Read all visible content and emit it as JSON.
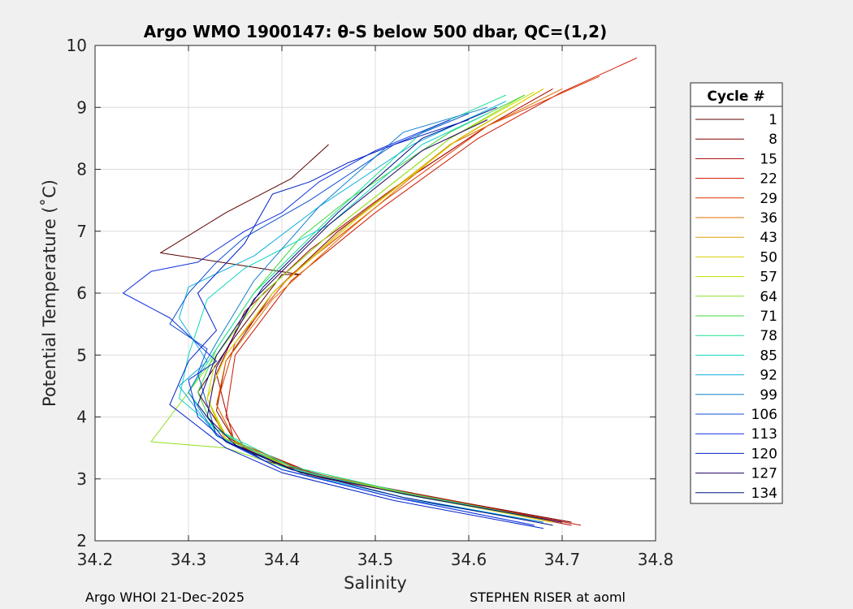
{
  "chart_data": {
    "type": "line",
    "title": "Argo WMO 1900147: θ-S below 500 dbar,  QC=(1,2)",
    "xlabel": "Salinity",
    "ylabel": "Potential Temperature (˚C)",
    "xlim": [
      34.2,
      34.8
    ],
    "ylim": [
      2,
      10
    ],
    "x_ticks": [
      "34.2",
      "34.3",
      "34.4",
      "34.5",
      "34.6",
      "34.7",
      "34.8"
    ],
    "y_ticks": [
      "2",
      "3",
      "4",
      "5",
      "6",
      "7",
      "8",
      "9",
      "10"
    ],
    "grid": true,
    "legend_position": "outside-right",
    "legend": {
      "title": "Cycle #",
      "entries": [
        "1",
        "8",
        "15",
        "22",
        "29",
        "36",
        "43",
        "50",
        "57",
        "64",
        "71",
        "78",
        "85",
        "92",
        "99",
        "106",
        "113",
        "120",
        "127",
        "134"
      ],
      "colors": [
        "#5a0000",
        "#7f0000",
        "#aa0000",
        "#cc1400",
        "#e03a00",
        "#e07000",
        "#d8a000",
        "#d8d000",
        "#c4e000",
        "#8ee020",
        "#40d840",
        "#20e090",
        "#10d8c0",
        "#10b0e0",
        "#1080d0",
        "#1050d0",
        "#1030e0",
        "#0020c8",
        "#200060",
        "#001080"
      ]
    },
    "series": [
      {
        "name": "1",
        "color": "#5a0000",
        "salinity": [
          34.71,
          34.6,
          34.46,
          34.38,
          34.34,
          34.31,
          34.35,
          34.4,
          34.42,
          34.27,
          34.34,
          34.41,
          34.45
        ],
        "theta": [
          2.3,
          2.6,
          3.0,
          3.3,
          3.7,
          4.4,
          5.3,
          6.3,
          6.3,
          6.65,
          7.3,
          7.85,
          8.4
        ]
      },
      {
        "name": "8",
        "color": "#7f0000",
        "salinity": [
          34.71,
          34.58,
          34.44,
          34.35,
          34.33,
          34.34,
          34.39,
          34.46,
          34.53,
          34.59
        ],
        "theta": [
          2.3,
          2.65,
          3.05,
          3.6,
          4.1,
          4.9,
          6.0,
          7.0,
          7.8,
          8.4
        ]
      },
      {
        "name": "15",
        "color": "#aa0000",
        "salinity": [
          34.71,
          34.57,
          34.43,
          34.35,
          34.34,
          34.33,
          34.36,
          34.43,
          34.52,
          34.62,
          34.69
        ],
        "theta": [
          2.25,
          2.65,
          3.05,
          3.55,
          4.1,
          4.7,
          5.7,
          6.7,
          7.7,
          8.7,
          9.3
        ]
      },
      {
        "name": "22",
        "color": "#cc1400",
        "salinity": [
          34.72,
          34.58,
          34.44,
          34.36,
          34.34,
          34.35,
          34.41,
          34.5,
          34.61,
          34.7,
          34.78
        ],
        "theta": [
          2.25,
          2.65,
          3.05,
          3.5,
          4.0,
          5.0,
          6.2,
          7.3,
          8.5,
          9.25,
          9.8
        ]
      },
      {
        "name": "29",
        "color": "#e03a00",
        "salinity": [
          34.7,
          34.56,
          34.43,
          34.35,
          34.33,
          34.35,
          34.41,
          34.51,
          34.62,
          34.74
        ],
        "theta": [
          2.3,
          2.7,
          3.1,
          3.6,
          4.2,
          5.2,
          6.3,
          7.5,
          8.7,
          9.5
        ]
      },
      {
        "name": "36",
        "color": "#e07000",
        "salinity": [
          34.7,
          34.57,
          34.42,
          34.35,
          34.33,
          34.34,
          34.39,
          34.47,
          34.58,
          34.7
        ],
        "theta": [
          2.3,
          2.65,
          3.1,
          3.6,
          4.2,
          4.9,
          5.9,
          7.0,
          8.4,
          9.3
        ]
      },
      {
        "name": "43",
        "color": "#d8a000",
        "salinity": [
          34.69,
          34.55,
          34.42,
          34.34,
          34.32,
          34.34,
          34.39,
          34.47,
          34.58,
          34.68
        ],
        "theta": [
          2.3,
          2.7,
          3.1,
          3.6,
          4.3,
          5.0,
          6.0,
          7.1,
          8.4,
          9.3
        ]
      },
      {
        "name": "50",
        "color": "#d8d000",
        "salinity": [
          34.69,
          34.55,
          34.42,
          34.34,
          34.32,
          34.34,
          34.39,
          34.48,
          34.59,
          34.68
        ],
        "theta": [
          2.3,
          2.7,
          3.1,
          3.65,
          4.3,
          5.0,
          6.0,
          7.2,
          8.5,
          9.3
        ]
      },
      {
        "name": "57",
        "color": "#c4e000",
        "salinity": [
          34.68,
          34.55,
          34.41,
          34.34,
          34.32,
          34.33,
          34.38,
          34.47,
          34.58,
          34.67
        ],
        "theta": [
          2.35,
          2.7,
          3.15,
          3.7,
          4.3,
          5.0,
          6.0,
          7.2,
          8.5,
          9.25
        ]
      },
      {
        "name": "64",
        "color": "#8ee020",
        "salinity": [
          34.68,
          34.54,
          34.41,
          34.34,
          34.26,
          34.32,
          34.38,
          34.47,
          34.58,
          34.66
        ],
        "theta": [
          2.35,
          2.75,
          3.15,
          3.5,
          3.6,
          4.8,
          6.0,
          7.2,
          8.5,
          9.2
        ]
      },
      {
        "name": "71",
        "color": "#40d840",
        "salinity": [
          34.68,
          34.54,
          34.41,
          34.33,
          34.31,
          34.33,
          34.37,
          34.42,
          34.47,
          34.58,
          34.66
        ],
        "theta": [
          2.35,
          2.75,
          3.2,
          3.7,
          4.4,
          5.1,
          6.0,
          6.9,
          7.5,
          8.6,
          9.2
        ]
      },
      {
        "name": "78",
        "color": "#20e090",
        "salinity": [
          34.68,
          34.54,
          34.41,
          34.33,
          34.3,
          34.33,
          34.37,
          34.45,
          34.55,
          34.64
        ],
        "theta": [
          2.35,
          2.75,
          3.2,
          3.8,
          4.4,
          5.1,
          6.0,
          7.2,
          8.6,
          9.2
        ]
      },
      {
        "name": "85",
        "color": "#10d8c0",
        "salinity": [
          34.68,
          34.53,
          34.4,
          34.33,
          34.29,
          34.3,
          34.32,
          34.36,
          34.45,
          34.55,
          34.62
        ],
        "theta": [
          2.35,
          2.75,
          3.2,
          3.8,
          4.3,
          5.0,
          5.9,
          6.4,
          7.1,
          8.4,
          8.9
        ]
      },
      {
        "name": "92",
        "color": "#10b0e0",
        "salinity": [
          34.68,
          34.53,
          34.4,
          34.33,
          34.29,
          34.32,
          34.29,
          34.3,
          34.37,
          34.44,
          34.54,
          34.64
        ],
        "theta": [
          2.3,
          2.7,
          3.15,
          3.7,
          4.5,
          4.9,
          5.6,
          6.1,
          6.6,
          7.4,
          8.4,
          9.1
        ]
      },
      {
        "name": "99",
        "color": "#1080d0",
        "salinity": [
          34.68,
          34.52,
          34.4,
          34.33,
          34.3,
          34.33,
          34.37,
          34.44,
          34.53,
          34.62
        ],
        "theta": [
          2.3,
          2.7,
          3.15,
          3.7,
          4.4,
          5.2,
          6.2,
          7.4,
          8.6,
          9.0
        ]
      },
      {
        "name": "106",
        "color": "#1050d0",
        "salinity": [
          34.67,
          34.52,
          34.4,
          34.33,
          34.32,
          34.31,
          34.32,
          34.28,
          34.3,
          34.33,
          34.36,
          34.43,
          34.52,
          34.6
        ],
        "theta": [
          2.25,
          2.7,
          3.15,
          3.7,
          4.2,
          4.7,
          5.1,
          5.5,
          6.0,
          6.5,
          6.9,
          7.5,
          8.4,
          8.9
        ]
      },
      {
        "name": "113",
        "color": "#1030e0",
        "salinity": [
          34.67,
          34.52,
          34.4,
          34.34,
          34.31,
          34.3,
          34.33,
          34.28,
          34.23,
          34.26,
          34.31,
          34.36,
          34.4,
          34.44,
          34.5,
          34.58
        ],
        "theta": [
          2.25,
          2.7,
          3.15,
          3.6,
          4.0,
          4.6,
          4.9,
          5.6,
          6.0,
          6.35,
          6.5,
          7.0,
          7.3,
          7.8,
          8.3,
          8.8
        ]
      },
      {
        "name": "120",
        "color": "#0020c8",
        "salinity": [
          34.68,
          34.52,
          34.4,
          34.34,
          34.28,
          34.3,
          34.33,
          34.31,
          34.36,
          34.39,
          34.43,
          34.47,
          34.52,
          34.6
        ],
        "theta": [
          2.2,
          2.65,
          3.1,
          3.5,
          4.2,
          4.9,
          5.4,
          6.0,
          6.8,
          7.6,
          7.8,
          8.1,
          8.4,
          8.8
        ]
      },
      {
        "name": "127",
        "color": "#200060",
        "salinity": [
          34.7,
          34.55,
          34.42,
          34.35,
          34.32,
          34.33,
          34.37,
          34.45,
          34.55,
          34.62
        ],
        "theta": [
          2.3,
          2.7,
          3.1,
          3.55,
          4.0,
          4.8,
          5.9,
          7.1,
          8.3,
          8.8
        ]
      },
      {
        "name": "134",
        "color": "#001080",
        "salinity": [
          34.69,
          34.53,
          34.41,
          34.34,
          34.31,
          34.33,
          34.38,
          34.46,
          34.55,
          34.63
        ],
        "theta": [
          2.25,
          2.7,
          3.15,
          3.6,
          4.2,
          5.0,
          6.1,
          7.3,
          8.5,
          9.0
        ]
      }
    ],
    "footer_left": "Argo WHOI 21-Dec-2025",
    "footer_right": "STEPHEN RISER at aoml"
  }
}
